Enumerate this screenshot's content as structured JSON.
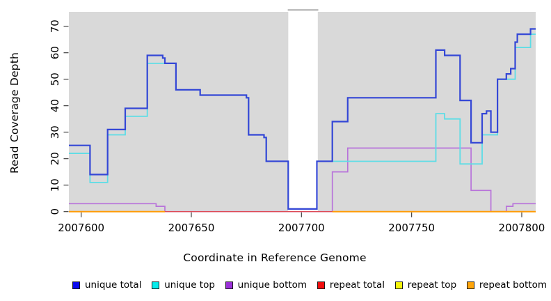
{
  "chart_data": {
    "type": "line",
    "subtype": "step-after",
    "title": "",
    "xlabel": "Coordinate in Reference Genome",
    "ylabel": "Read Coverage Depth",
    "xlim": [
      2007594,
      2007806
    ],
    "ylim": [
      0,
      75
    ],
    "x_ticks": [
      2007600,
      2007650,
      2007700,
      2007750,
      2007800
    ],
    "y_ticks": [
      0,
      10,
      20,
      30,
      40,
      50,
      60,
      70
    ],
    "grid": "off",
    "legend_position": "bottom",
    "panel_background": "#d9d9d9",
    "page_background": "#ffffff",
    "masked_region": {
      "x_start": 2007694,
      "x_end": 2007707,
      "color": "#ffffff"
    },
    "series": [
      {
        "name": "unique total",
        "line_color": "#3447d6",
        "legend_color": "#0a0af0",
        "width": 2.2,
        "points": [
          [
            2007594,
            25
          ],
          [
            2007604,
            14
          ],
          [
            2007612,
            31
          ],
          [
            2007620,
            39
          ],
          [
            2007630,
            59
          ],
          [
            2007637,
            58
          ],
          [
            2007638,
            56
          ],
          [
            2007643,
            46
          ],
          [
            2007654,
            44
          ],
          [
            2007675,
            43
          ],
          [
            2007676,
            29
          ],
          [
            2007683,
            28
          ],
          [
            2007684,
            19
          ],
          [
            2007694,
            1
          ],
          [
            2007707,
            19
          ],
          [
            2007714,
            34
          ],
          [
            2007721,
            43
          ],
          [
            2007761,
            61
          ],
          [
            2007765,
            59
          ],
          [
            2007772,
            42
          ],
          [
            2007777,
            26
          ],
          [
            2007782,
            37
          ],
          [
            2007784,
            38
          ],
          [
            2007786,
            30
          ],
          [
            2007789,
            50
          ],
          [
            2007793,
            52
          ],
          [
            2007795,
            54
          ],
          [
            2007797,
            64
          ],
          [
            2007798,
            67
          ],
          [
            2007804,
            69
          ]
        ]
      },
      {
        "name": "unique top",
        "line_color": "#5cdde6",
        "legend_color": "#06ecec",
        "width": 1.8,
        "points": [
          [
            2007594,
            22
          ],
          [
            2007604,
            11
          ],
          [
            2007612,
            29
          ],
          [
            2007620,
            36
          ],
          [
            2007630,
            56
          ],
          [
            2007638,
            56
          ],
          [
            2007643,
            46
          ],
          [
            2007654,
            44
          ],
          [
            2007675,
            43
          ],
          [
            2007676,
            29
          ],
          [
            2007683,
            28
          ],
          [
            2007684,
            19
          ],
          [
            2007694,
            1
          ],
          [
            2007707,
            19
          ],
          [
            2007761,
            37
          ],
          [
            2007765,
            35
          ],
          [
            2007772,
            18
          ],
          [
            2007782,
            29
          ],
          [
            2007789,
            50
          ],
          [
            2007797,
            62
          ],
          [
            2007804,
            67
          ]
        ]
      },
      {
        "name": "unique bottom",
        "line_color": "#b873da",
        "legend_color": "#9b30d9",
        "width": 1.7,
        "points": [
          [
            2007594,
            3
          ],
          [
            2007634,
            2
          ],
          [
            2007638,
            0
          ],
          [
            2007714,
            15
          ],
          [
            2007721,
            24
          ],
          [
            2007777,
            8
          ],
          [
            2007786,
            0
          ],
          [
            2007793,
            2
          ],
          [
            2007796,
            3
          ]
        ]
      },
      {
        "name": "repeat total",
        "line_color": "#dd4a55",
        "legend_color": "#f20d0d",
        "width": 1.4,
        "points": [
          [
            2007594,
            0
          ]
        ]
      },
      {
        "name": "repeat top",
        "line_color": "#f0f000",
        "legend_color": "#f5f50a",
        "width": 1.4,
        "points": [
          [
            2007594,
            0
          ]
        ]
      },
      {
        "name": "repeat bottom",
        "line_color": "#ff9b06",
        "legend_color": "#ffa50a",
        "width": 2,
        "points": [
          [
            2007594,
            0
          ]
        ],
        "visible_segments": [
          [
            2007594,
            2007638
          ],
          [
            2007714,
            2007806.5
          ]
        ]
      }
    ]
  },
  "legend": {
    "items": [
      {
        "label": "unique total"
      },
      {
        "label": "unique top"
      },
      {
        "label": "unique bottom"
      },
      {
        "label": "repeat total"
      },
      {
        "label": "repeat top"
      },
      {
        "label": "repeat bottom"
      }
    ]
  },
  "labels": {
    "x_axis": "Coordinate in Reference Genome",
    "y_axis": "Read Coverage Depth"
  }
}
